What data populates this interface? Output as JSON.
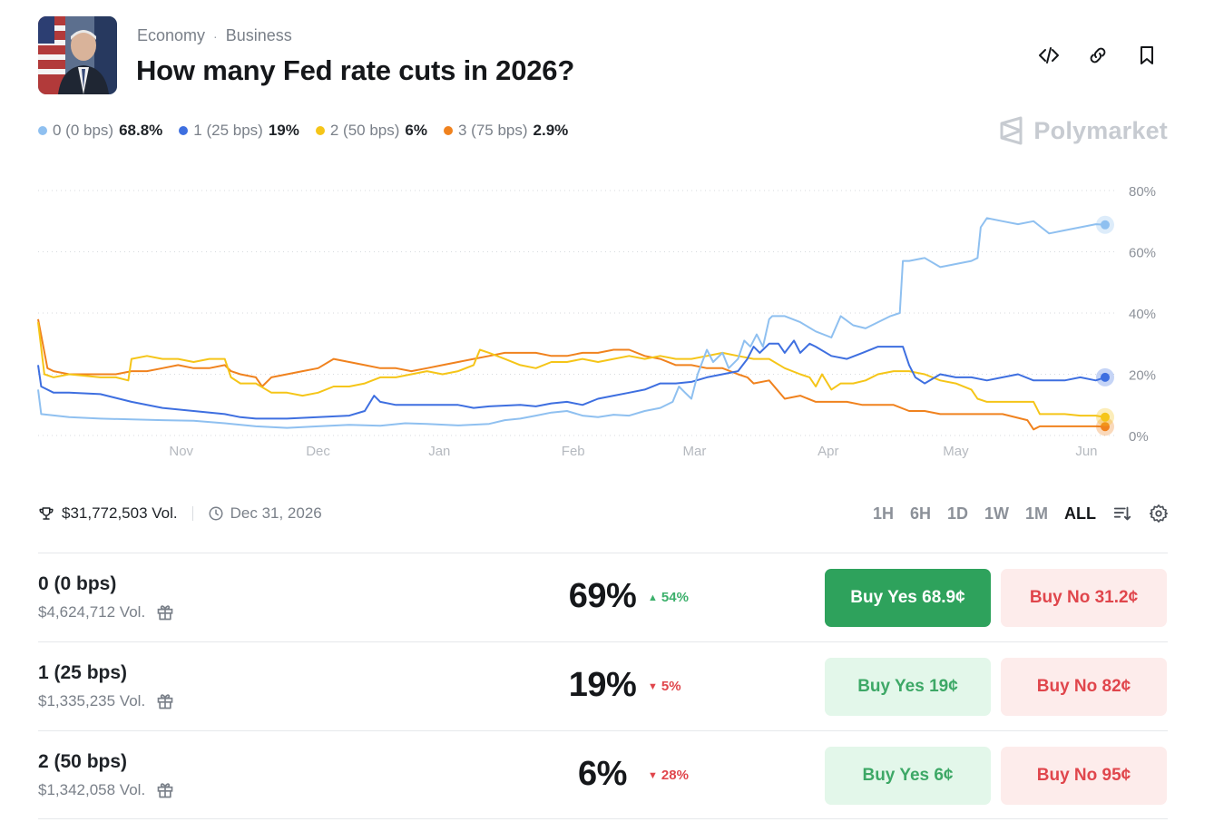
{
  "header": {
    "breadcrumb": [
      "Economy",
      "Business"
    ],
    "title": "How many Fed rate cuts in 2026?",
    "actions": [
      {
        "name": "embed-icon"
      },
      {
        "name": "link-icon"
      },
      {
        "name": "bookmark-icon"
      }
    ]
  },
  "brand": "Polymarket",
  "legend": [
    {
      "label": "0 (0 bps)",
      "pct": "68.8%",
      "color": "#8fc0f0"
    },
    {
      "label": "1 (25 bps)",
      "pct": "19%",
      "color": "#3e6fe0"
    },
    {
      "label": "2 (50 bps)",
      "pct": "6%",
      "color": "#f5c518"
    },
    {
      "label": "3 (75 bps)",
      "pct": "2.9%",
      "color": "#f0821e"
    }
  ],
  "chart_data": {
    "type": "line",
    "x_ticks": [
      "Nov",
      "Dec",
      "Jan",
      "Feb",
      "Mar",
      "Apr",
      "May",
      "Jun"
    ],
    "y_ticks": [
      "80%",
      "60%",
      "40%",
      "20%",
      "0%"
    ],
    "ylim": [
      0,
      80
    ],
    "grid": true,
    "series": [
      {
        "name": "0 (0 bps)",
        "color": "#8fc0f0",
        "values": [
          [
            0,
            15
          ],
          [
            1,
            7
          ],
          [
            10,
            6
          ],
          [
            20,
            5.5
          ],
          [
            40,
            5
          ],
          [
            50,
            4.8
          ],
          [
            60,
            4
          ],
          [
            70,
            3
          ],
          [
            80,
            2.5
          ],
          [
            90,
            3
          ],
          [
            100,
            3.5
          ],
          [
            110,
            3.2
          ],
          [
            118,
            4
          ],
          [
            125,
            3.8
          ],
          [
            135,
            3.3
          ],
          [
            145,
            3.8
          ],
          [
            150,
            5
          ],
          [
            155,
            5.5
          ],
          [
            160,
            6.5
          ],
          [
            165,
            7.5
          ],
          [
            170,
            8
          ],
          [
            175,
            6.5
          ],
          [
            180,
            6
          ],
          [
            185,
            6.8
          ],
          [
            190,
            6.5
          ],
          [
            195,
            8
          ],
          [
            200,
            9
          ],
          [
            204,
            11
          ],
          [
            206,
            16
          ],
          [
            208,
            14
          ],
          [
            210,
            12
          ],
          [
            212,
            20
          ],
          [
            215,
            28
          ],
          [
            217,
            24
          ],
          [
            220,
            27
          ],
          [
            222,
            22
          ],
          [
            225,
            25
          ],
          [
            227,
            31
          ],
          [
            229,
            29
          ],
          [
            231,
            33
          ],
          [
            233,
            29
          ],
          [
            235,
            38
          ],
          [
            236,
            39
          ],
          [
            240,
            39
          ],
          [
            245,
            37
          ],
          [
            250,
            34
          ],
          [
            255,
            32
          ],
          [
            258,
            39
          ],
          [
            262,
            36
          ],
          [
            266,
            35
          ],
          [
            270,
            37
          ],
          [
            274,
            39
          ],
          [
            277,
            40
          ],
          [
            278,
            57
          ],
          [
            280,
            57
          ],
          [
            285,
            58
          ],
          [
            290,
            55
          ],
          [
            295,
            56
          ],
          [
            300,
            57
          ],
          [
            302,
            58
          ],
          [
            303,
            68
          ],
          [
            305,
            71
          ],
          [
            310,
            70
          ],
          [
            315,
            69
          ],
          [
            320,
            70
          ],
          [
            325,
            66
          ],
          [
            330,
            67
          ],
          [
            335,
            68
          ],
          [
            340,
            69
          ],
          [
            343,
            68.8
          ]
        ]
      },
      {
        "name": "1 (25 bps)",
        "color": "#3e6fe0",
        "values": [
          [
            0,
            23
          ],
          [
            1,
            16
          ],
          [
            5,
            14
          ],
          [
            10,
            14
          ],
          [
            20,
            13.5
          ],
          [
            30,
            11
          ],
          [
            40,
            9
          ],
          [
            50,
            8
          ],
          [
            60,
            7
          ],
          [
            65,
            6
          ],
          [
            70,
            5.5
          ],
          [
            80,
            5.5
          ],
          [
            90,
            6
          ],
          [
            100,
            6.5
          ],
          [
            105,
            8
          ],
          [
            108,
            13
          ],
          [
            110,
            11
          ],
          [
            115,
            10
          ],
          [
            125,
            10
          ],
          [
            135,
            10
          ],
          [
            140,
            9
          ],
          [
            145,
            9.5
          ],
          [
            155,
            10
          ],
          [
            160,
            9.5
          ],
          [
            165,
            10.5
          ],
          [
            170,
            11
          ],
          [
            175,
            10
          ],
          [
            180,
            12
          ],
          [
            185,
            13
          ],
          [
            190,
            14
          ],
          [
            195,
            15
          ],
          [
            200,
            17
          ],
          [
            205,
            17
          ],
          [
            210,
            17.5
          ],
          [
            215,
            19
          ],
          [
            220,
            20
          ],
          [
            225,
            21
          ],
          [
            228,
            25
          ],
          [
            230,
            29
          ],
          [
            232,
            27
          ],
          [
            235,
            30
          ],
          [
            238,
            30
          ],
          [
            240,
            27
          ],
          [
            243,
            31
          ],
          [
            245,
            27
          ],
          [
            248,
            30
          ],
          [
            250,
            29
          ],
          [
            255,
            26
          ],
          [
            260,
            25
          ],
          [
            265,
            27
          ],
          [
            270,
            29
          ],
          [
            275,
            29
          ],
          [
            278,
            29
          ],
          [
            280,
            23
          ],
          [
            282,
            19
          ],
          [
            285,
            17
          ],
          [
            290,
            20
          ],
          [
            295,
            19
          ],
          [
            300,
            19
          ],
          [
            305,
            18
          ],
          [
            310,
            19
          ],
          [
            315,
            20
          ],
          [
            320,
            18
          ],
          [
            325,
            18
          ],
          [
            330,
            18
          ],
          [
            335,
            19
          ],
          [
            340,
            18
          ],
          [
            343,
            19
          ]
        ]
      },
      {
        "name": "2 (50 bps)",
        "color": "#f5c518",
        "values": [
          [
            0,
            37
          ],
          [
            2,
            20
          ],
          [
            5,
            19
          ],
          [
            10,
            20
          ],
          [
            20,
            19
          ],
          [
            25,
            19
          ],
          [
            29,
            18
          ],
          [
            30,
            25
          ],
          [
            35,
            26
          ],
          [
            40,
            25
          ],
          [
            45,
            25
          ],
          [
            50,
            24
          ],
          [
            55,
            25
          ],
          [
            60,
            25
          ],
          [
            62,
            19
          ],
          [
            65,
            17
          ],
          [
            70,
            17
          ],
          [
            75,
            14
          ],
          [
            80,
            14
          ],
          [
            85,
            13
          ],
          [
            90,
            14
          ],
          [
            95,
            16
          ],
          [
            100,
            16
          ],
          [
            105,
            17
          ],
          [
            110,
            19
          ],
          [
            115,
            19
          ],
          [
            120,
            20
          ],
          [
            125,
            21
          ],
          [
            130,
            20
          ],
          [
            135,
            21
          ],
          [
            140,
            23
          ],
          [
            142,
            28
          ],
          [
            145,
            27
          ],
          [
            150,
            25
          ],
          [
            155,
            23
          ],
          [
            160,
            22
          ],
          [
            165,
            24
          ],
          [
            170,
            24
          ],
          [
            175,
            25
          ],
          [
            180,
            24
          ],
          [
            185,
            25
          ],
          [
            190,
            26
          ],
          [
            195,
            25
          ],
          [
            200,
            26
          ],
          [
            205,
            25
          ],
          [
            210,
            25
          ],
          [
            215,
            26
          ],
          [
            220,
            27
          ],
          [
            225,
            26
          ],
          [
            230,
            25
          ],
          [
            235,
            25
          ],
          [
            240,
            22
          ],
          [
            245,
            20
          ],
          [
            248,
            19
          ],
          [
            250,
            16
          ],
          [
            252,
            20
          ],
          [
            255,
            15
          ],
          [
            258,
            17
          ],
          [
            262,
            17
          ],
          [
            266,
            18
          ],
          [
            270,
            20
          ],
          [
            275,
            21
          ],
          [
            280,
            21
          ],
          [
            285,
            20
          ],
          [
            290,
            18
          ],
          [
            295,
            17
          ],
          [
            300,
            15
          ],
          [
            302,
            12
          ],
          [
            305,
            11
          ],
          [
            310,
            11
          ],
          [
            315,
            11
          ],
          [
            320,
            11
          ],
          [
            322,
            7
          ],
          [
            325,
            7
          ],
          [
            330,
            7
          ],
          [
            335,
            6.5
          ],
          [
            340,
            6.5
          ],
          [
            343,
            6
          ]
        ]
      },
      {
        "name": "3 (75 bps)",
        "color": "#f0821e",
        "values": [
          [
            0,
            38
          ],
          [
            3,
            22
          ],
          [
            5,
            21
          ],
          [
            10,
            20
          ],
          [
            20,
            20
          ],
          [
            25,
            20
          ],
          [
            30,
            21
          ],
          [
            35,
            21
          ],
          [
            40,
            22
          ],
          [
            45,
            23
          ],
          [
            50,
            22
          ],
          [
            55,
            22
          ],
          [
            60,
            23
          ],
          [
            62,
            21
          ],
          [
            65,
            20
          ],
          [
            70,
            19
          ],
          [
            72,
            16
          ],
          [
            75,
            19
          ],
          [
            80,
            20
          ],
          [
            85,
            21
          ],
          [
            90,
            22
          ],
          [
            95,
            25
          ],
          [
            100,
            24
          ],
          [
            105,
            23
          ],
          [
            110,
            22
          ],
          [
            115,
            22
          ],
          [
            120,
            21
          ],
          [
            125,
            22
          ],
          [
            130,
            23
          ],
          [
            135,
            24
          ],
          [
            140,
            25
          ],
          [
            145,
            26
          ],
          [
            150,
            27
          ],
          [
            155,
            27
          ],
          [
            160,
            27
          ],
          [
            165,
            26
          ],
          [
            170,
            26
          ],
          [
            175,
            27
          ],
          [
            180,
            27
          ],
          [
            185,
            28
          ],
          [
            190,
            28
          ],
          [
            195,
            26
          ],
          [
            200,
            25
          ],
          [
            205,
            23
          ],
          [
            210,
            23
          ],
          [
            215,
            22
          ],
          [
            220,
            22
          ],
          [
            225,
            20
          ],
          [
            228,
            19
          ],
          [
            230,
            17
          ],
          [
            235,
            18
          ],
          [
            240,
            12
          ],
          [
            245,
            13
          ],
          [
            250,
            11
          ],
          [
            255,
            11
          ],
          [
            260,
            11
          ],
          [
            265,
            10
          ],
          [
            270,
            10
          ],
          [
            275,
            10
          ],
          [
            280,
            8
          ],
          [
            285,
            8
          ],
          [
            290,
            7
          ],
          [
            295,
            7
          ],
          [
            300,
            7
          ],
          [
            305,
            7
          ],
          [
            310,
            7
          ],
          [
            318,
            5
          ],
          [
            320,
            2
          ],
          [
            322,
            3
          ],
          [
            325,
            3
          ],
          [
            330,
            3
          ],
          [
            335,
            3
          ],
          [
            340,
            3
          ],
          [
            343,
            2.9
          ]
        ]
      }
    ]
  },
  "stats": {
    "volume": "$31,772,503 Vol.",
    "end_date": "Dec 31, 2026"
  },
  "ranges": [
    {
      "label": "1H",
      "active": false
    },
    {
      "label": "6H",
      "active": false
    },
    {
      "label": "1D",
      "active": false
    },
    {
      "label": "1W",
      "active": false
    },
    {
      "label": "1M",
      "active": false
    },
    {
      "label": "ALL",
      "active": true
    }
  ],
  "outcomes": [
    {
      "name": "0 (0 bps)",
      "volume": "$4,624,712 Vol.",
      "pct": "69%",
      "change": "54%",
      "dir": "up",
      "yes": "Buy Yes 68.9¢",
      "no": "Buy No 31.2¢",
      "yes_solid": true
    },
    {
      "name": "1 (25 bps)",
      "volume": "$1,335,235 Vol.",
      "pct": "19%",
      "change": "5%",
      "dir": "down",
      "yes": "Buy Yes 19¢",
      "no": "Buy No 82¢",
      "yes_solid": false
    },
    {
      "name": "2 (50 bps)",
      "volume": "$1,342,058 Vol.",
      "pct": "6%",
      "change": "28%",
      "dir": "down",
      "yes": "Buy Yes 6¢",
      "no": "Buy No 95¢",
      "yes_solid": false
    }
  ]
}
